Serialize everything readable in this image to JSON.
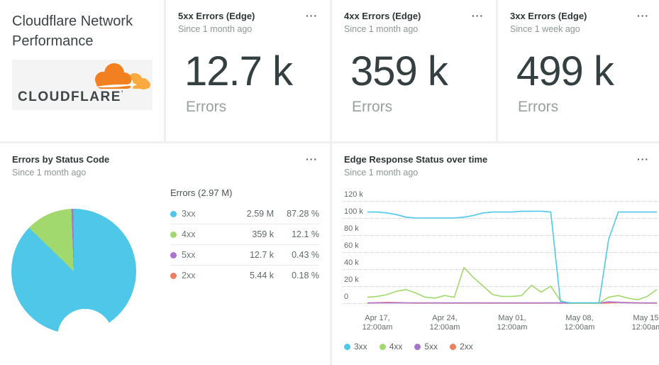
{
  "ui": {
    "menu_icon": "···"
  },
  "title_card": {
    "title": "Cloudflare Network Performance",
    "logo_text": "CLOUDFLARE",
    "logo_trademark": "’"
  },
  "stat_cards": [
    {
      "title": "5xx Errors (Edge)",
      "subtitle": "Since 1 month ago",
      "value": "12.7 k",
      "unit": "Errors"
    },
    {
      "title": "4xx Errors (Edge)",
      "subtitle": "Since 1 month ago",
      "value": "359 k",
      "unit": "Errors"
    },
    {
      "title": "3xx Errors (Edge)",
      "subtitle": "Since 1 week ago",
      "value": "499 k",
      "unit": "Errors"
    }
  ],
  "donut_card": {
    "title": "Errors by Status Code",
    "subtitle": "Since 1 month ago",
    "table_header": "Errors (2.97 M)",
    "rows": [
      {
        "label": "3xx",
        "value": "2.59 M",
        "pct": "87.28 %",
        "color": "#4ec7e8",
        "share": 87.28
      },
      {
        "label": "4xx",
        "value": "359 k",
        "pct": "12.1 %",
        "color": "#a2d96e",
        "share": 12.1
      },
      {
        "label": "5xx",
        "value": "12.7 k",
        "pct": "0.43 %",
        "color": "#ab72d0",
        "share": 0.43
      },
      {
        "label": "2xx",
        "value": "5.44 k",
        "pct": "0.18 %",
        "color": "#ef7e5f",
        "share": 0.18
      }
    ]
  },
  "chart_card": {
    "title": "Edge Response Status over time",
    "subtitle": "Since 1 month ago",
    "y_ticks": [
      "120 k",
      "100 k",
      "80 k",
      "60 k",
      "40 k",
      "20 k",
      "0"
    ],
    "x_ticks": [
      {
        "l1": "Apr 17,",
        "l2": "12:00am"
      },
      {
        "l1": "Apr 24,",
        "l2": "12:00am"
      },
      {
        "l1": "May 01,",
        "l2": "12:00am"
      },
      {
        "l1": "May 08,",
        "l2": "12:00am"
      },
      {
        "l1": "May 15,",
        "l2": "12:00am"
      }
    ],
    "legend": [
      "3xx",
      "4xx",
      "5xx",
      "2xx"
    ]
  },
  "chart_data": [
    {
      "type": "pie",
      "donut": true,
      "title": "Errors by Status Code",
      "subtitle": "Since 1 month ago",
      "total_label": "Errors (2.97 M)",
      "slices": [
        {
          "label": "3xx",
          "value": 2590000,
          "display": "2.59 M",
          "pct": 87.28,
          "color": "#4ec7e8"
        },
        {
          "label": "4xx",
          "value": 359000,
          "display": "359 k",
          "pct": 12.1,
          "color": "#a2d96e"
        },
        {
          "label": "5xx",
          "value": 12700,
          "display": "12.7 k",
          "pct": 0.43,
          "color": "#ab72d0"
        },
        {
          "label": "2xx",
          "value": 5440,
          "display": "5.44 k",
          "pct": 0.18,
          "color": "#ef7e5f"
        }
      ],
      "legend_position": "right"
    },
    {
      "type": "line",
      "title": "Edge Response Status over time",
      "subtitle": "Since 1 month ago",
      "unit": "errors per interval (values are thousands)",
      "ylim": [
        0,
        120000
      ],
      "y_tick_labels": [
        "120 k",
        "100 k",
        "80 k",
        "60 k",
        "40 k",
        "20 k",
        "0"
      ],
      "x_tick_labels": [
        "Apr 17, 12:00am",
        "Apr 24, 12:00am",
        "May 01, 12:00am",
        "May 08, 12:00am",
        "May 15, 12:00am"
      ],
      "x": [
        "Apr 16",
        "Apr 17",
        "Apr 18",
        "Apr 19",
        "Apr 20",
        "Apr 21",
        "Apr 22",
        "Apr 23",
        "Apr 24",
        "Apr 25",
        "Apr 26",
        "Apr 27",
        "Apr 28",
        "Apr 29",
        "Apr 30",
        "May 01",
        "May 02",
        "May 03",
        "May 04",
        "May 05",
        "May 06",
        "May 07",
        "May 08",
        "May 09",
        "May 10",
        "May 11",
        "May 12",
        "May 13",
        "May 14",
        "May 15",
        "May 16"
      ],
      "series": [
        {
          "name": "3xx",
          "color": "#4ec7e8",
          "values_k": [
            107,
            107,
            106,
            104,
            101,
            100,
            100,
            100,
            100,
            100,
            101,
            103,
            106,
            107,
            107,
            107,
            108,
            108,
            108,
            107,
            2,
            0.5,
            0.5,
            0.5,
            0.5,
            75,
            107,
            107,
            107,
            107,
            107
          ]
        },
        {
          "name": "4xx",
          "color": "#a2d96e",
          "values_k": [
            7,
            8,
            10,
            14,
            16,
            12,
            7,
            6,
            9,
            7,
            42,
            30,
            20,
            10,
            8,
            8,
            9,
            21,
            13,
            20,
            3,
            0,
            0,
            0,
            0,
            7,
            9,
            6,
            4,
            8,
            16
          ]
        },
        {
          "name": "5xx",
          "color": "#ab72d0",
          "values_k": [
            0.4,
            0.4,
            0.4,
            0.4,
            0.4,
            0.4,
            0.4,
            0.4,
            0.4,
            0.4,
            0.4,
            0.4,
            0.4,
            0.4,
            0.4,
            0.4,
            0.4,
            0.4,
            0.4,
            0.4,
            0.3,
            0.2,
            0.2,
            0.2,
            0.2,
            1.6,
            1.2,
            0.4,
            0.4,
            0.4,
            0.4
          ]
        },
        {
          "name": "2xx",
          "color": "#ef7e5f",
          "values_k": [
            0.2,
            0.6,
            1,
            0.8,
            0.3,
            0.2,
            0.2,
            0.3,
            0.2,
            0.2,
            0.2,
            0.3,
            0.2,
            0.2,
            0.2,
            0.2,
            0.2,
            0.2,
            0.2,
            0.3,
            0.2,
            0.1,
            0.1,
            0.1,
            0.1,
            0.3,
            1,
            0.8,
            0.3,
            0.2,
            0.2
          ]
        }
      ],
      "grid": "dotted horizontal",
      "legend_position": "bottom-left"
    }
  ]
}
